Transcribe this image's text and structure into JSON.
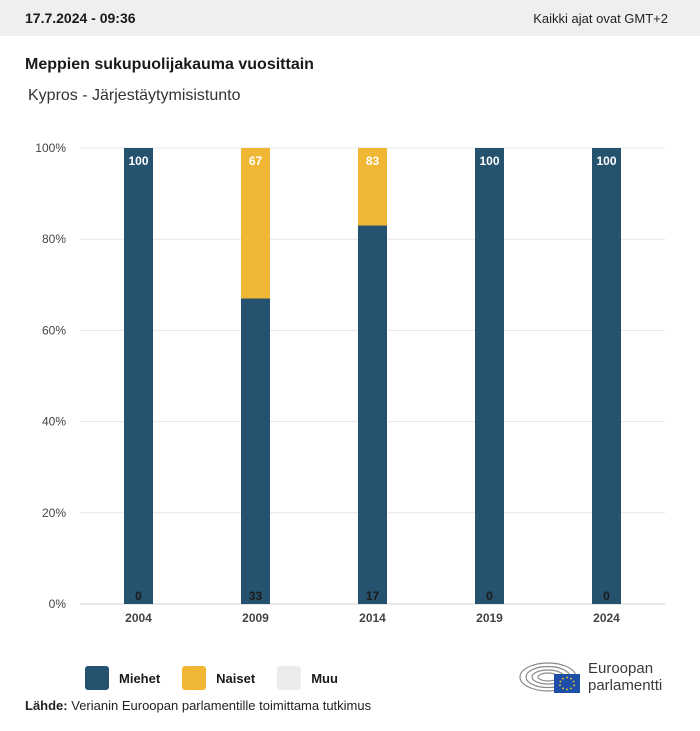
{
  "header": {
    "timestamp": "17.7.2024 - 09:36",
    "timezone_note": "Kaikki ajat ovat GMT+2"
  },
  "chart_data": {
    "type": "bar",
    "stacked": true,
    "title": "Meppien sukupuolijakauma vuosittain",
    "subtitle": "Kypros - Järjestäytymisistunto",
    "categories": [
      "2004",
      "2009",
      "2014",
      "2019",
      "2024"
    ],
    "series": [
      {
        "name": "Miehet",
        "values": [
          100,
          67,
          83,
          100,
          100
        ],
        "color": "#24526f"
      },
      {
        "name": "Naiset",
        "values": [
          0,
          33,
          17,
          0,
          0
        ],
        "color": "#f0b735"
      },
      {
        "name": "Muu",
        "values": [
          0,
          0,
          0,
          0,
          0
        ],
        "color": "#ececec"
      }
    ],
    "y_ticks": [
      "0%",
      "20%",
      "40%",
      "60%",
      "80%",
      "100%"
    ],
    "ylim": [
      0,
      100
    ],
    "grid": true,
    "legend_position": "bottom-left"
  },
  "footer": {
    "source_label": "Lähde:",
    "source_text": "Verianin Euroopan parlamentille toimittama tutkimus",
    "logo_line1": "Euroopan",
    "logo_line2": "parlamentti"
  }
}
